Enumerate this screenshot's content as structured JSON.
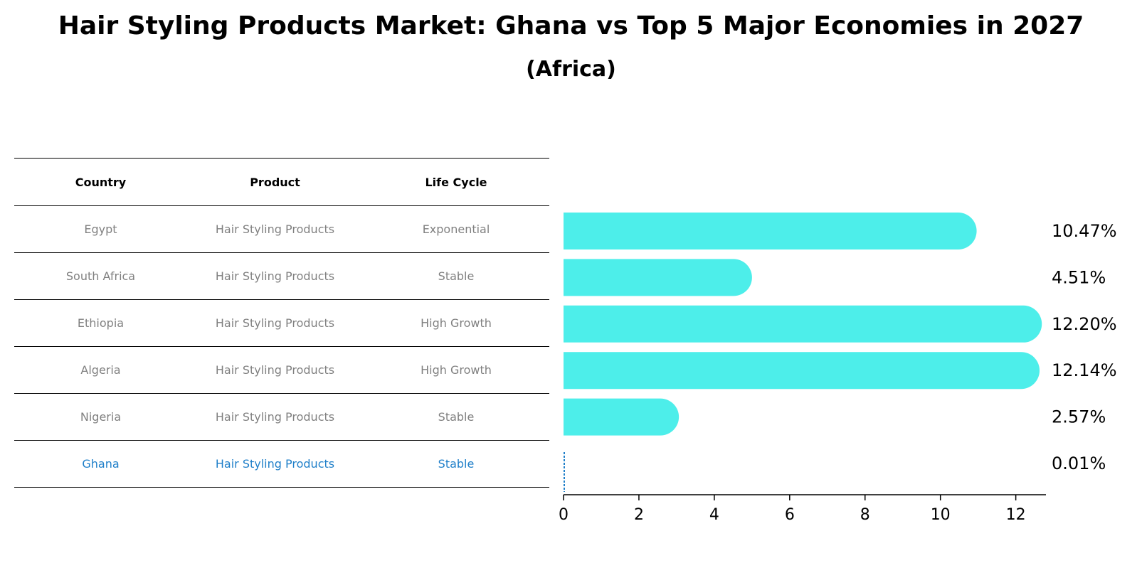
{
  "title": "Hair Styling Products Market: Ghana vs Top 5 Major Economies in 2027",
  "subtitle": "(Africa)",
  "table": {
    "headers": [
      "Country",
      "Product",
      "Life Cycle"
    ],
    "rows": [
      {
        "country": "Egypt",
        "product": "Hair Styling Products",
        "life_cycle": "Exponential"
      },
      {
        "country": "South Africa",
        "product": "Hair Styling Products",
        "life_cycle": "Stable"
      },
      {
        "country": "Ethiopia",
        "product": "Hair Styling Products",
        "life_cycle": "High Growth"
      },
      {
        "country": "Algeria",
        "product": "Hair Styling Products",
        "life_cycle": "High Growth"
      },
      {
        "country": "Nigeria",
        "product": "Hair Styling Products",
        "life_cycle": "Stable"
      },
      {
        "country": "Ghana",
        "product": "Hair Styling Products",
        "life_cycle": "Stable"
      }
    ]
  },
  "chart_data": {
    "type": "bar",
    "orientation": "horizontal",
    "categories": [
      "Egypt",
      "South Africa",
      "Ethiopia",
      "Algeria",
      "Nigeria",
      "Ghana"
    ],
    "values": [
      10.47,
      4.51,
      12.2,
      12.14,
      2.57,
      0.01
    ],
    "value_labels": [
      "10.47%",
      "4.51%",
      "12.20%",
      "12.14%",
      "2.57%",
      "0.01%"
    ],
    "xlim": [
      0,
      12.8
    ],
    "xticks": [
      0,
      2,
      4,
      6,
      8,
      10,
      12
    ],
    "highlight": "Ghana",
    "colors": {
      "bar": "#4deeea",
      "highlight": "#1f7fc9",
      "axis": "#000000",
      "muted_text": "#808080"
    }
  }
}
